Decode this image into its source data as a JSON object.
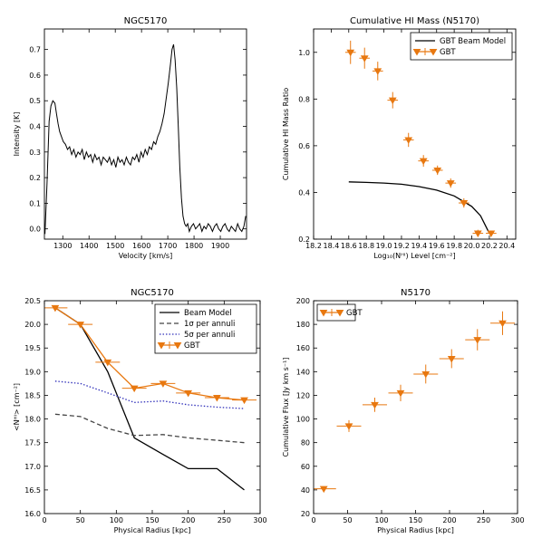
{
  "chart_data": [
    {
      "type": "line",
      "title": "NGC5170",
      "xlabel": "Velocity [km/s]",
      "ylabel": "Intensity [K]",
      "xlim": [
        1230,
        2000
      ],
      "ylim": [
        -0.04,
        0.78
      ],
      "xticks": [
        "1300",
        "1400",
        "1500",
        "1600",
        "1700",
        "1800",
        "1900"
      ],
      "yticks": [
        "0.0",
        "0.1",
        "0.2",
        "0.3",
        "0.4",
        "0.5",
        "0.6",
        "0.7"
      ],
      "series": [
        {
          "name": "",
          "color": "#000000",
          "x": [
            1232,
            1240,
            1248,
            1255,
            1262,
            1270,
            1276,
            1282,
            1288,
            1295,
            1302,
            1310,
            1318,
            1326,
            1334,
            1342,
            1350,
            1358,
            1366,
            1374,
            1382,
            1390,
            1398,
            1406,
            1414,
            1422,
            1430,
            1438,
            1446,
            1454,
            1462,
            1470,
            1478,
            1486,
            1494,
            1502,
            1510,
            1518,
            1526,
            1534,
            1542,
            1550,
            1558,
            1566,
            1574,
            1582,
            1590,
            1598,
            1606,
            1614,
            1622,
            1630,
            1638,
            1646,
            1654,
            1662,
            1670,
            1678,
            1686,
            1694,
            1702,
            1710,
            1716,
            1722,
            1728,
            1734,
            1740,
            1746,
            1752,
            1758,
            1764,
            1770,
            1776,
            1782,
            1790,
            1798,
            1806,
            1814,
            1822,
            1830,
            1838,
            1846,
            1854,
            1862,
            1870,
            1878,
            1886,
            1894,
            1902,
            1910,
            1918,
            1926,
            1934,
            1942,
            1950,
            1958,
            1966,
            1974,
            1982,
            1990,
            1997
          ],
          "y": [
            -0.02,
            0.18,
            0.42,
            0.48,
            0.5,
            0.49,
            0.45,
            0.41,
            0.38,
            0.36,
            0.34,
            0.33,
            0.31,
            0.32,
            0.29,
            0.31,
            0.28,
            0.3,
            0.29,
            0.31,
            0.27,
            0.3,
            0.28,
            0.29,
            0.26,
            0.29,
            0.27,
            0.28,
            0.25,
            0.28,
            0.27,
            0.26,
            0.28,
            0.25,
            0.27,
            0.24,
            0.28,
            0.26,
            0.27,
            0.25,
            0.28,
            0.26,
            0.25,
            0.28,
            0.27,
            0.29,
            0.26,
            0.3,
            0.28,
            0.31,
            0.29,
            0.32,
            0.31,
            0.34,
            0.33,
            0.36,
            0.38,
            0.41,
            0.45,
            0.51,
            0.57,
            0.64,
            0.7,
            0.72,
            0.66,
            0.55,
            0.4,
            0.24,
            0.12,
            0.05,
            0.02,
            0.01,
            0.02,
            -0.01,
            0.01,
            0.02,
            0.0,
            0.01,
            0.02,
            -0.01,
            0.01,
            0.0,
            0.02,
            0.01,
            -0.01,
            0.01,
            0.02,
            0.0,
            -0.01,
            0.01,
            0.02,
            0.0,
            -0.01,
            0.01,
            0.0,
            -0.01,
            0.02,
            0.0,
            -0.01,
            0.01,
            0.05
          ]
        }
      ]
    },
    {
      "type": "scatter",
      "title": "Cumulative HI Mass (N5170)",
      "xlabel": "Log₁₀(Nᴴᴵ) Level [cm⁻²]",
      "ylabel": "Cumulative HI Mass Ratio",
      "xlim": [
        18.2,
        20.5
      ],
      "ylim": [
        0.2,
        1.1
      ],
      "xticks": [
        "18.2",
        "18.4",
        "18.6",
        "18.8",
        "19.0",
        "19.2",
        "19.4",
        "19.6",
        "19.8",
        "20.0",
        "20.2",
        "20.4"
      ],
      "yticks": [
        "0.2",
        "0.4",
        "0.6",
        "0.8",
        "1.0"
      ],
      "legend": "top-right",
      "series": [
        {
          "name": "GBT Beam Model",
          "type": "line",
          "color": "#000000",
          "x": [
            18.6,
            18.8,
            19.0,
            19.2,
            19.4,
            19.6,
            19.8,
            20.0,
            20.1,
            20.2
          ],
          "y": [
            0.445,
            0.443,
            0.44,
            0.435,
            0.425,
            0.41,
            0.385,
            0.34,
            0.3,
            0.225
          ]
        },
        {
          "name": "GBT",
          "type": "errorbar",
          "color": "#e87810",
          "x": [
            18.62,
            18.78,
            18.93,
            19.1,
            19.28,
            19.45,
            19.61,
            19.76,
            19.91,
            20.07,
            20.22
          ],
          "y": [
            1.0,
            0.975,
            0.92,
            0.795,
            0.625,
            0.535,
            0.495,
            0.44,
            0.355,
            0.225,
            0.225
          ],
          "xerr": [
            0.06,
            0.06,
            0.06,
            0.06,
            0.06,
            0.06,
            0.06,
            0.06,
            0.06,
            0.06,
            0.06
          ],
          "yerr": [
            0.05,
            0.045,
            0.04,
            0.035,
            0.03,
            0.025,
            0.02,
            0.02,
            0.02,
            0.015,
            0.01
          ]
        }
      ]
    },
    {
      "type": "line",
      "title": "NGC5170",
      "xlabel": "Physical Radius [kpc]",
      "ylabel": "<Nᴴᴵ> [cm⁻²]",
      "xlim": [
        0,
        300
      ],
      "ylim": [
        16.0,
        20.5
      ],
      "xticks": [
        "0",
        "50",
        "100",
        "150",
        "200",
        "250",
        "300"
      ],
      "yticks": [
        "16.0",
        "16.5",
        "17.0",
        "17.5",
        "18.0",
        "18.5",
        "19.0",
        "19.5",
        "20.0",
        "20.5"
      ],
      "legend": "top-right",
      "series": [
        {
          "name": "Beam Model",
          "style": "solid",
          "color": "#000000",
          "x": [
            15,
            50,
            88,
            125,
            165,
            200,
            240,
            278
          ],
          "y": [
            20.35,
            20.0,
            19.0,
            17.6,
            17.25,
            16.95,
            16.95,
            16.5
          ]
        },
        {
          "name": "1σ per annuli",
          "style": "dashed",
          "color": "#444444",
          "x": [
            15,
            50,
            88,
            125,
            165,
            200,
            240,
            278
          ],
          "y": [
            18.1,
            18.05,
            17.8,
            17.65,
            17.67,
            17.6,
            17.55,
            17.5
          ]
        },
        {
          "name": "5σ per annuli",
          "style": "dotted",
          "color": "#3333bb",
          "x": [
            15,
            50,
            88,
            125,
            165,
            200,
            240,
            278
          ],
          "y": [
            18.8,
            18.75,
            18.55,
            18.35,
            18.38,
            18.3,
            18.25,
            18.22
          ]
        },
        {
          "name": "GBT",
          "style": "errorbar",
          "color": "#e87810",
          "x": [
            15,
            50,
            88,
            125,
            165,
            200,
            240,
            278
          ],
          "y": [
            20.35,
            20.0,
            19.2,
            18.65,
            18.75,
            18.55,
            18.45,
            18.4
          ],
          "xerr": [
            17,
            17,
            17,
            17,
            17,
            17,
            17,
            17
          ],
          "yerr": [
            0.02,
            0.02,
            0.02,
            0.03,
            0.03,
            0.03,
            0.03,
            0.03
          ]
        }
      ]
    },
    {
      "type": "scatter",
      "title": "N5170",
      "xlabel": "Physical Radius [kpc]",
      "ylabel": "Cumulative Flux [Jy km s⁻¹]",
      "xlim": [
        0,
        300
      ],
      "ylim": [
        20,
        200
      ],
      "xticks": [
        "0",
        "50",
        "100",
        "150",
        "200",
        "250",
        "300"
      ],
      "yticks": [
        "20",
        "40",
        "60",
        "80",
        "100",
        "120",
        "140",
        "160",
        "180",
        "200"
      ],
      "legend": "top-left",
      "series": [
        {
          "name": "GBT",
          "type": "errorbar",
          "color": "#e87810",
          "x": [
            15,
            52,
            90,
            128,
            165,
            203,
            241,
            278
          ],
          "y": [
            41,
            94,
            112,
            122,
            138,
            151,
            167,
            181
          ],
          "xerr": [
            18,
            18,
            18,
            18,
            18,
            18,
            18,
            18
          ],
          "yerr": [
            1,
            5,
            6,
            7,
            8,
            8,
            9,
            10
          ]
        }
      ]
    }
  ]
}
